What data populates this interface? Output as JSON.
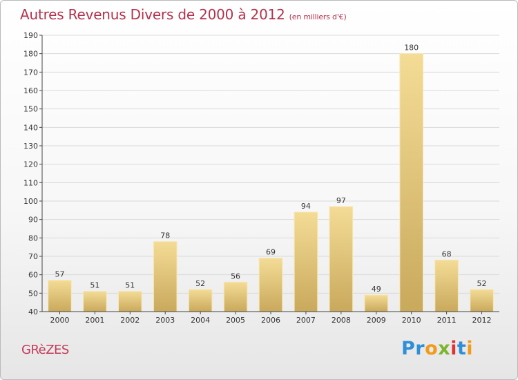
{
  "header": {
    "title": "Autres Revenus Divers de 2000 à 2012",
    "subtitle": "(en milliers d'€)"
  },
  "footer": {
    "commune": "GRèZES",
    "brand_letters": [
      {
        "ch": "P",
        "color": "#2e8fd6"
      },
      {
        "ch": "r",
        "color": "#2e8fd6"
      },
      {
        "ch": "o",
        "color": "#f19a1b"
      },
      {
        "ch": "x",
        "color": "#7ab52b"
      },
      {
        "ch": "i",
        "color": "#e5312e"
      },
      {
        "ch": "t",
        "color": "#2e8fd6"
      },
      {
        "ch": "i",
        "color": "#f19a1b"
      }
    ]
  },
  "colors": {
    "bar_light": "#f4dc96",
    "bar_dark": "#c9a95c",
    "axis": "#444444",
    "grid": "#d9d9d9",
    "label": "#333333"
  },
  "chart_data": {
    "type": "bar",
    "categories": [
      "2000",
      "2001",
      "2002",
      "2003",
      "2004",
      "2005",
      "2006",
      "2007",
      "2008",
      "2009",
      "2010",
      "2011",
      "2012"
    ],
    "values": [
      57,
      51,
      51,
      78,
      52,
      56,
      69,
      94,
      97,
      49,
      180,
      68,
      52
    ],
    "ylim": [
      40,
      190
    ],
    "yticks": [
      40,
      50,
      60,
      70,
      80,
      90,
      100,
      110,
      120,
      130,
      140,
      150,
      160,
      170,
      180,
      190
    ],
    "grid": true,
    "data_labels": true
  }
}
